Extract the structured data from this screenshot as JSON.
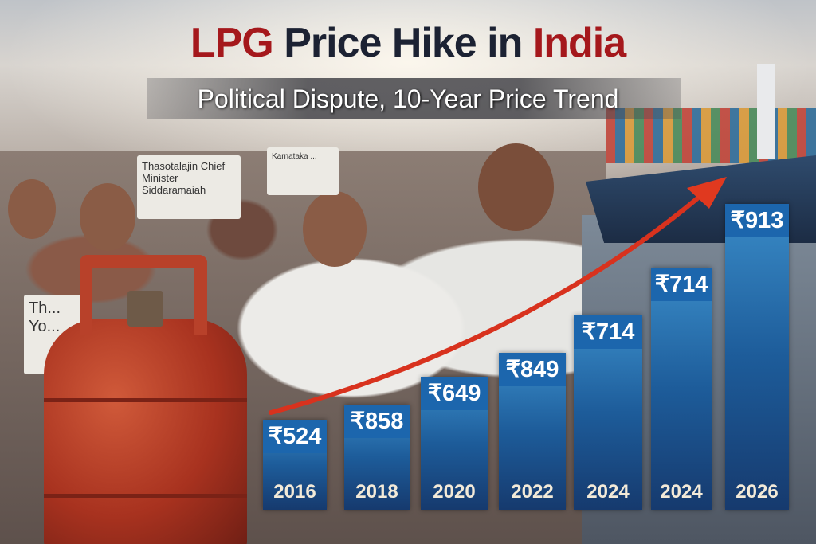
{
  "title": {
    "part1": "LPG",
    "part2": "Price Hike in",
    "part3": "India"
  },
  "subtitle": "Political Dispute, 10-Year Price Trend",
  "signs": [
    "Thasotalajin Chief Minister Siddaramaiah",
    "Karnataka ...",
    "Th... Yo..."
  ],
  "colors": {
    "title_dark": "#1c2233",
    "title_red": "#a5181c",
    "bar_blue": "#1c66ad",
    "arrow": "#d8321e"
  },
  "chart_data": {
    "type": "bar",
    "title": "LPG Price Hike in India",
    "subtitle": "Political Dispute, 10-Year Price Trend",
    "categories": [
      "2016",
      "2018",
      "2020",
      "2022",
      "2024",
      "2024",
      "2026"
    ],
    "values": [
      524,
      858,
      649,
      849,
      714,
      714,
      913
    ],
    "value_labels": [
      "₹524",
      "₹858",
      "₹649",
      "₹849",
      "₹714",
      "₹714",
      "₹913"
    ],
    "currency": "₹",
    "trend_arrow": "upward",
    "grid": false
  }
}
